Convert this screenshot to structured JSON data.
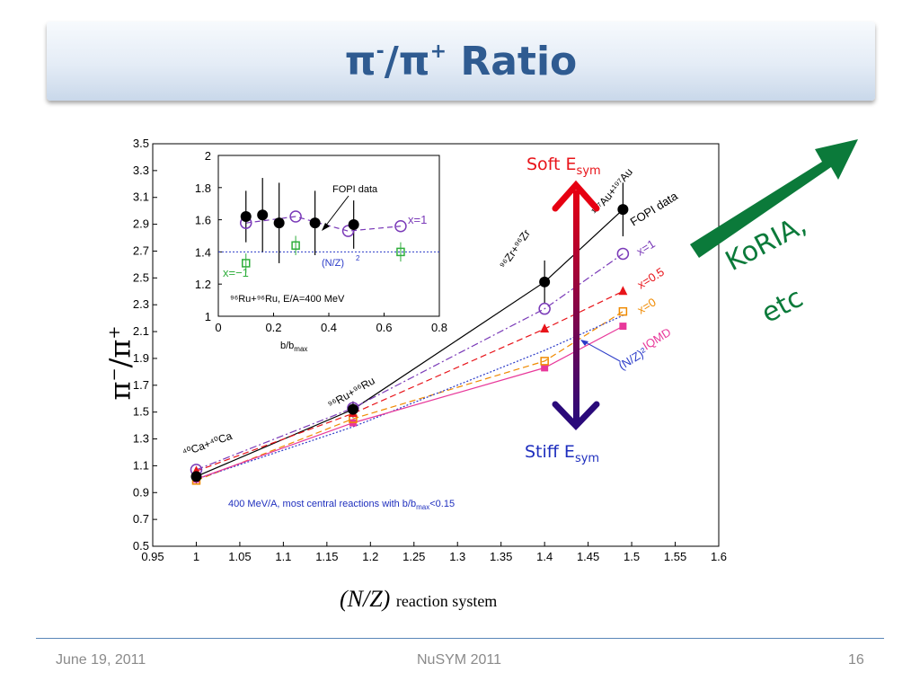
{
  "slide": {
    "title_main": "π",
    "title_sup1": "-",
    "title_slash": "/π",
    "title_sup2": "+",
    "title_rest": " Ratio",
    "footer_date": "June 19, 2011",
    "footer_conf": "NuSYM 2011",
    "footer_page": "16"
  },
  "annotations": {
    "soft_label": "Soft E",
    "soft_sub": "sym",
    "stiff_label": "Stiff E",
    "stiff_sub": "sym",
    "koria": "KoRIA,",
    "etc": "etc",
    "colors": {
      "soft": "#e8141a",
      "stiff": "#1f2fbe",
      "arrow_top": "#e60012",
      "arrow_bottom": "#2a0a7a",
      "green": "#0b7a3a"
    }
  },
  "chart_data": [
    {
      "type": "scatter",
      "xlabel_main": "(N/Z)",
      "xlabel_sub": "reaction system",
      "ylabel_main": "π",
      "ylabel_sup1": "−",
      "ylabel_slash": "/π",
      "ylabel_sup2": "+",
      "xlim": [
        0.95,
        1.6
      ],
      "ylim": [
        0.5,
        3.5
      ],
      "x_ticks": [
        "0.95",
        "1",
        "1.05",
        "1.1",
        "1.15",
        "1.2",
        "1.25",
        "1.3",
        "1.35",
        "1.4",
        "1.45",
        "1.5",
        "1.55",
        "1.6"
      ],
      "y_ticks": [
        "0.5",
        "0.7",
        "0.9",
        "1.1",
        "1.3",
        "1.5",
        "1.7",
        "1.9",
        "2.1",
        "2.3",
        "2.5",
        "2.7",
        "2.9",
        "3.1",
        "3.3",
        "3.5"
      ],
      "note": "400 MeV/A, most central reactions with b/b",
      "note_sub": "max",
      "note_tail": "<0.15",
      "systems": [
        {
          "label": "⁴⁰Ca+⁴⁰Ca",
          "x": 1.0
        },
        {
          "label": "⁹⁶Ru+⁹⁶Ru",
          "x": 1.18
        },
        {
          "label": "⁹⁶Zr+⁹⁶Zr",
          "x": 1.4
        },
        {
          "label": "¹⁹⁷Au+¹⁹⁷Au",
          "x": 1.49
        }
      ],
      "series": [
        {
          "name": "FOPI data",
          "color": "#000000",
          "marker": "filled-circle",
          "line": "solid",
          "x": [
            1.0,
            1.18,
            1.4,
            1.49
          ],
          "y": [
            1.02,
            1.52,
            2.47,
            3.01
          ],
          "yerr": [
            0.05,
            0.06,
            0.16,
            0.2
          ]
        },
        {
          "name": "x=1",
          "color": "#7a3ab8",
          "marker": "open-circle",
          "line": "dashdot",
          "x": [
            1.0,
            1.18,
            1.4,
            1.49
          ],
          "y": [
            1.07,
            1.53,
            2.27,
            2.68
          ]
        },
        {
          "name": "x=0.5",
          "color": "#e8141a",
          "marker": "filled-triangle",
          "line": "dashed",
          "x": [
            1.0,
            1.18,
            1.4,
            1.49
          ],
          "y": [
            1.06,
            1.49,
            2.12,
            2.4
          ]
        },
        {
          "name": "x=0",
          "color": "#f08a00",
          "marker": "open-square",
          "line": "dashed",
          "x": [
            1.0,
            1.18,
            1.4,
            1.49
          ],
          "y": [
            0.99,
            1.45,
            1.88,
            2.25
          ]
        },
        {
          "name": "(N/Z)²",
          "color": "#2a3ac8",
          "marker": "none",
          "line": "dotted",
          "x": [
            1.0,
            1.18,
            1.4,
            1.49
          ],
          "y": [
            1.0,
            1.39,
            1.96,
            2.22
          ]
        },
        {
          "name": "IQMD",
          "color": "#e8389a",
          "marker": "filled-square",
          "line": "solid",
          "x": [
            1.0,
            1.18,
            1.4,
            1.49
          ],
          "y": [
            1.0,
            1.42,
            1.83,
            2.14
          ]
        }
      ]
    },
    {
      "type": "scatter",
      "xlabel_main": "b/b",
      "xlabel_sub": "max",
      "xlim": [
        0,
        0.8
      ],
      "ylim": [
        1,
        2
      ],
      "x_ticks": [
        "0",
        "0.2",
        "0.4",
        "0.6",
        "0.8"
      ],
      "y_ticks": [
        "1",
        "1.2",
        "1.4",
        "1.6",
        "1.8",
        "2"
      ],
      "annotation_fopi": "FOPI data",
      "annotation_nz": "(N/Z)",
      "annotation_nz_sup": "2",
      "annotation_x1": "x=1",
      "annotation_xm1": "x=−1",
      "annotation_system": "⁹⁶Ru+⁹⁶Ru, E/A=400 MeV",
      "nz2_level": 1.4,
      "series": [
        {
          "name": "FOPI data",
          "color": "#000000",
          "marker": "filled-circle",
          "x": [
            0.1,
            0.16,
            0.22,
            0.35,
            0.49
          ],
          "y": [
            1.62,
            1.63,
            1.58,
            1.58,
            1.57
          ],
          "yerr": [
            0.16,
            0.23,
            0.25,
            0.2,
            0.15
          ]
        },
        {
          "name": "x=1",
          "color": "#7a3ab8",
          "marker": "open-circle",
          "x": [
            0.1,
            0.28,
            0.47,
            0.66
          ],
          "y": [
            1.58,
            1.62,
            1.53,
            1.56
          ]
        },
        {
          "name": "x=−1",
          "color": "#2fae3c",
          "marker": "open-square",
          "x": [
            0.1,
            0.28,
            0.66
          ],
          "y": [
            1.33,
            1.44,
            1.4
          ]
        }
      ]
    }
  ]
}
